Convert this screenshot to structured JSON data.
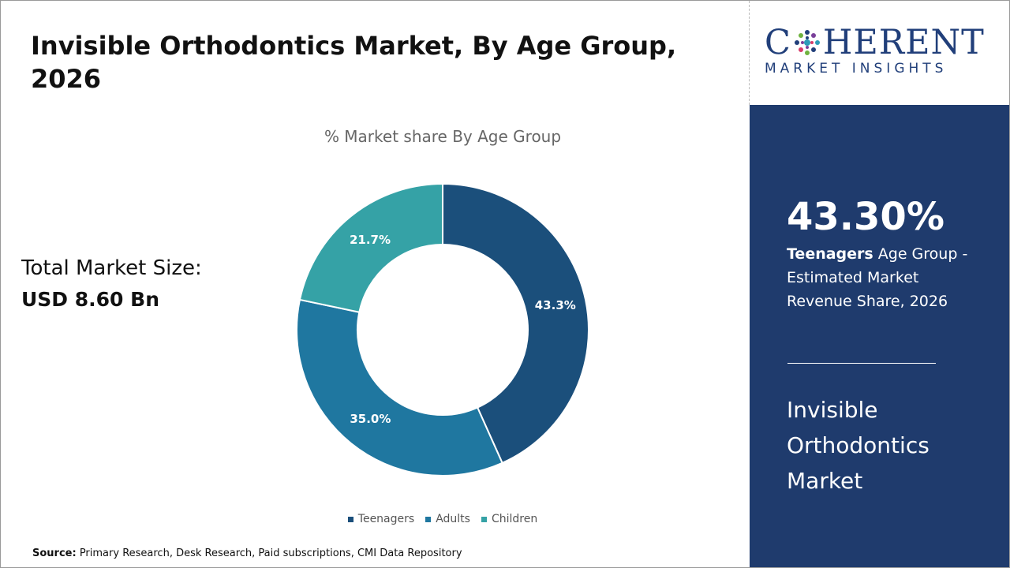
{
  "chart_data": {
    "type": "pie",
    "title": "Invisible Orthodontics Market, By Age Group, 2026",
    "subtitle": "% Market share By Age Group",
    "categories": [
      "Teenagers",
      "Adults",
      "Children"
    ],
    "values": [
      43.3,
      35,
      21.7
    ],
    "value_labels": [
      "43.3%",
      "35.0%",
      "21.7%"
    ],
    "colors": [
      "#1b4f7b",
      "#1f77a0",
      "#35a2a6"
    ],
    "donut": true
  },
  "market_size": {
    "label": "Total Market Size:",
    "value": "USD 8.60 Bn"
  },
  "logo": {
    "name_start": "C",
    "name_end": "HERENT",
    "tagline": "MARKET INSIGHTS"
  },
  "panel": {
    "highlight": "43.30%",
    "segment": "Teenagers",
    "description": " Age Group - Estimated Market Revenue Share, 2026",
    "market": "Invisible Orthodontics Market"
  },
  "source": {
    "label": "Source:",
    "text": " Primary Research, Desk Research, Paid subscriptions, CMI Data Repository"
  }
}
